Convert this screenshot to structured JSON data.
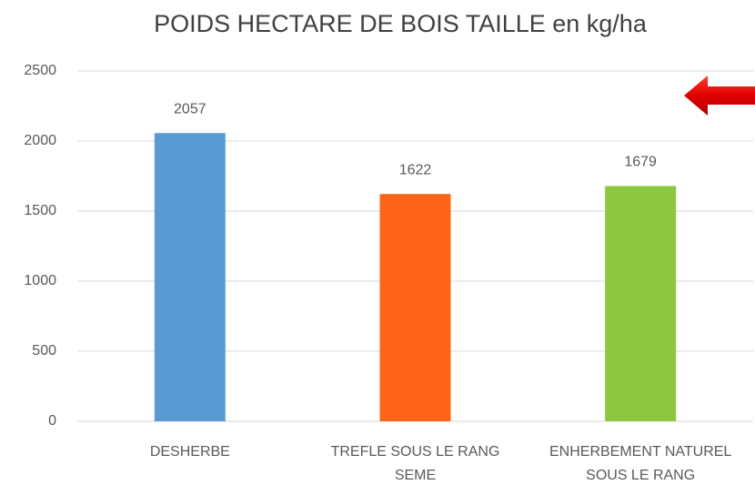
{
  "chart_data": {
    "type": "bar",
    "title": "POIDS HECTARE DE BOIS TAILLE en kg/ha",
    "categories": [
      "DESHERBE",
      "TREFLE SOUS LE RANG SEME",
      "ENHERBEMENT NATUREL SOUS LE RANG"
    ],
    "values": [
      2057,
      1622,
      1679
    ],
    "colors": [
      "#5b9bd5",
      "#fd6418",
      "#8dc63f"
    ],
    "ylim": [
      0,
      2500
    ],
    "yticks": [
      0,
      500,
      1000,
      1500,
      2000,
      2500
    ],
    "grid": true
  }
}
